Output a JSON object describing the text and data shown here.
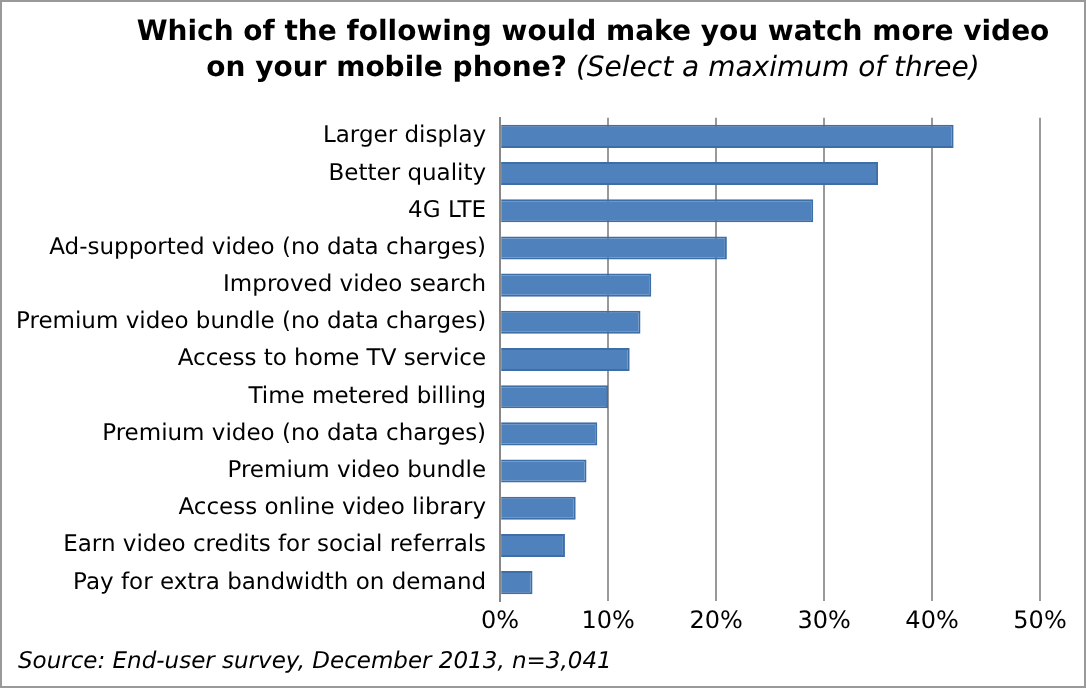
{
  "chart_data": {
    "type": "bar",
    "orientation": "horizontal",
    "title": "Which of the following would make you watch more video on your mobile phone?",
    "subtitle": "(Select a maximum of three)",
    "categories": [
      "Larger display",
      "Better quality",
      "4G LTE",
      "Ad-supported video (no data charges)",
      "Improved video search",
      "Premium video bundle (no data charges)",
      "Access to home TV service",
      "Time metered billing",
      "Premium video (no data charges)",
      "Premium video bundle",
      "Access online video library",
      "Earn video credits for social referrals",
      "Pay for extra bandwidth on demand"
    ],
    "values": [
      42,
      35,
      29,
      21,
      14,
      13,
      12,
      10,
      9,
      8,
      7,
      6,
      3
    ],
    "color": "#4f81bd",
    "xlim": [
      0,
      50
    ],
    "xticks": [
      {
        "value": 0,
        "label": "0%"
      },
      {
        "value": 10,
        "label": "10%"
      },
      {
        "value": 20,
        "label": "20%"
      },
      {
        "value": 30,
        "label": "30%"
      },
      {
        "value": 40,
        "label": "40%"
      },
      {
        "value": 50,
        "label": "50%"
      }
    ],
    "grid": "x",
    "legend": false,
    "annotations": [
      "Source: End-user survey, December 2013, n=3,041"
    ]
  }
}
